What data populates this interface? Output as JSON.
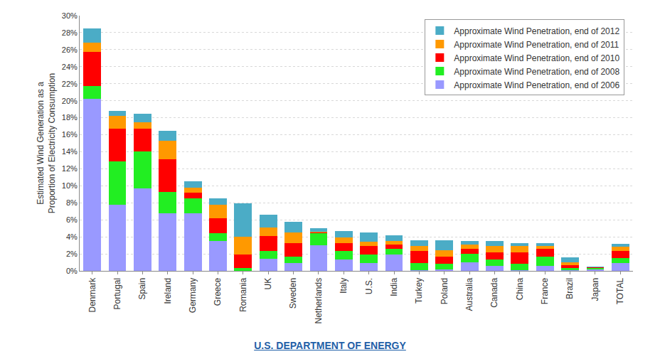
{
  "chart_data": {
    "type": "bar",
    "stacked": true,
    "y_label": "Estimated Wind Generation as a\nProportion of Electricity Consumption",
    "annotations": [
      "U.S. DEPARTMENT OF ENERGY"
    ],
    "categories": [
      "Denmark",
      "Portugal",
      "Spain",
      "Ireland",
      "Germany",
      "Greece",
      "Romania",
      "UK",
      "Sweden",
      "Netherlands",
      "Italy",
      "U.S.",
      "India",
      "Turkey",
      "Poland",
      "Australia",
      "Canada",
      "China",
      "France",
      "Brazil",
      "Japan",
      "TOTAL"
    ],
    "series": [
      {
        "name": "Approximate Wind Penetration, end of 2006",
        "color": "#9999ff",
        "values": [
          20.2,
          7.8,
          9.7,
          6.8,
          6.8,
          3.5,
          0.0,
          1.4,
          0.9,
          3.0,
          1.3,
          0.9,
          1.9,
          0.1,
          0.2,
          1.0,
          0.6,
          0.1,
          0.6,
          0.1,
          0.2,
          0.9
        ]
      },
      {
        "name": "Approximate Wind Penetration, end of 2008",
        "color": "#22ee22",
        "values": [
          1.5,
          5.1,
          4.3,
          2.5,
          1.7,
          0.9,
          0.3,
          0.9,
          0.8,
          1.4,
          1.0,
          1.0,
          0.7,
          0.8,
          0.6,
          1.0,
          0.7,
          0.7,
          1.1,
          0.2,
          0.1,
          0.6
        ]
      },
      {
        "name": "Approximate Wind Penetration, end of 2010",
        "color": "#ff0000",
        "values": [
          4.0,
          3.8,
          2.7,
          3.8,
          0.7,
          1.8,
          1.6,
          1.8,
          1.6,
          0.1,
          1.0,
          1.0,
          0.5,
          1.4,
          0.9,
          0.6,
          0.9,
          1.4,
          0.9,
          0.4,
          0.1,
          0.8
        ]
      },
      {
        "name": "Approximate Wind Penetration, end of 2011",
        "color": "#ff9900",
        "values": [
          1.1,
          1.5,
          0.8,
          2.2,
          0.6,
          1.6,
          2.1,
          1.0,
          1.2,
          0.1,
          0.6,
          0.5,
          0.4,
          0.6,
          0.7,
          0.5,
          0.7,
          0.7,
          0.3,
          0.3,
          0.0,
          0.5
        ]
      },
      {
        "name": "Approximate Wind Penetration, end of 2012",
        "color": "#4bacc6",
        "values": [
          1.7,
          0.6,
          1.0,
          1.2,
          0.7,
          0.7,
          3.9,
          1.5,
          1.3,
          0.4,
          0.8,
          1.1,
          0.7,
          0.7,
          1.2,
          0.4,
          0.6,
          0.4,
          0.4,
          0.6,
          0.1,
          0.4
        ]
      }
    ],
    "ylim": [
      0,
      30
    ],
    "yticks": [
      {
        "value": 0,
        "label": "0%"
      },
      {
        "value": 2,
        "label": "2%"
      },
      {
        "value": 4,
        "label": "4%"
      },
      {
        "value": 6,
        "label": "6%"
      },
      {
        "value": 8,
        "label": "8%"
      },
      {
        "value": 10,
        "label": "10%"
      },
      {
        "value": 12,
        "label": "12%"
      },
      {
        "value": 14,
        "label": "14%"
      },
      {
        "value": 16,
        "label": "16%"
      },
      {
        "value": 18,
        "label": "18%"
      },
      {
        "value": 20,
        "label": "20%"
      },
      {
        "value": 22,
        "label": "22%"
      },
      {
        "value": 24,
        "label": "24%"
      },
      {
        "value": 26,
        "label": "26%"
      },
      {
        "value": 28,
        "label": "28%"
      },
      {
        "value": 30,
        "label": "30%"
      }
    ],
    "grid": true,
    "legend": "upper right"
  }
}
